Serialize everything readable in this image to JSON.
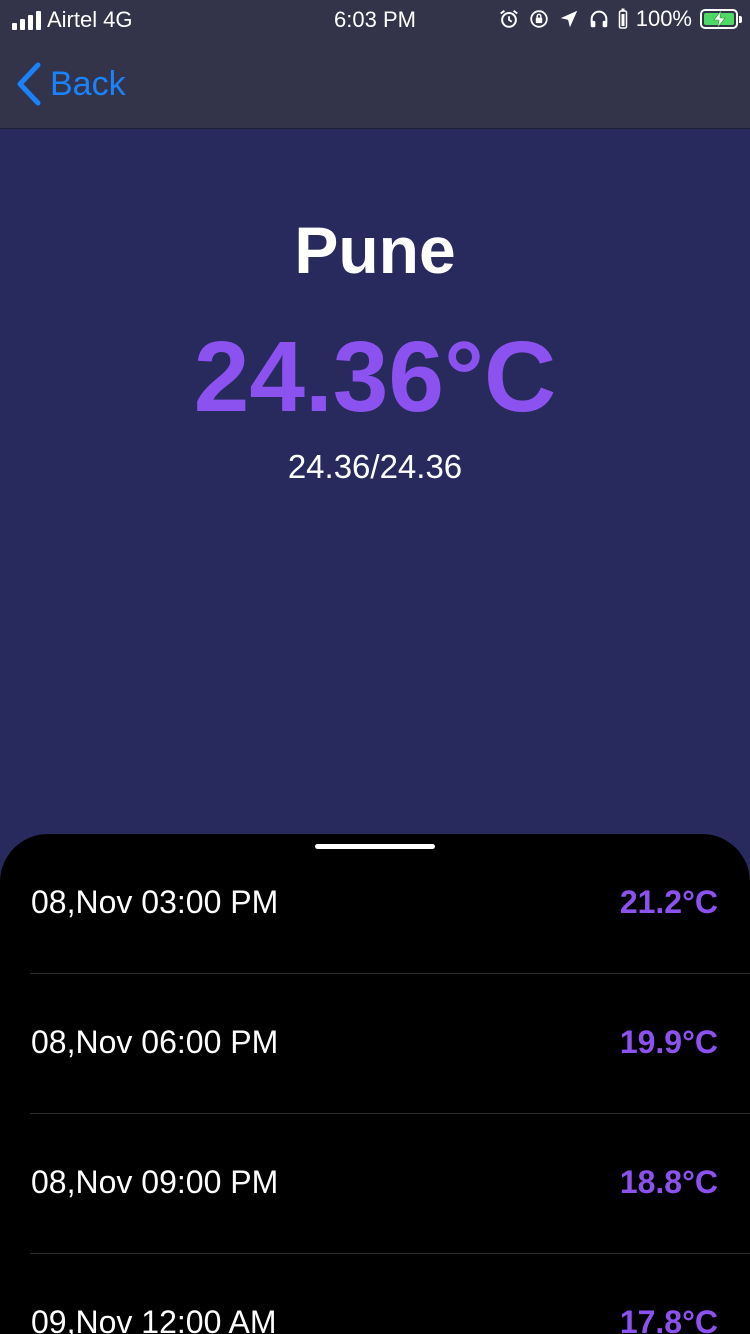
{
  "status_bar": {
    "carrier": "Airtel",
    "network": "4G",
    "time": "6:03 PM",
    "battery_percent": "100%",
    "battery_level": 1.0,
    "icons": [
      "alarm-icon",
      "orientation-lock-icon",
      "location-arrow-icon",
      "headphones-icon",
      "battery-icon"
    ]
  },
  "nav": {
    "back_label": "Back"
  },
  "weather": {
    "city": "Pune",
    "temperature": "24.36°C",
    "min_max": "24.36/24.36"
  },
  "colors": {
    "background": "#282a5e",
    "accent": "#8c52f0",
    "nav_tint": "#1a82fb",
    "sheet": "#000000"
  },
  "forecast": [
    {
      "time": "08,Nov 03:00 PM",
      "temp": "21.2°C"
    },
    {
      "time": "08,Nov 06:00 PM",
      "temp": "19.9°C"
    },
    {
      "time": "08,Nov 09:00 PM",
      "temp": "18.8°C"
    },
    {
      "time": "09,Nov 12:00 AM",
      "temp": "17.8°C"
    }
  ]
}
